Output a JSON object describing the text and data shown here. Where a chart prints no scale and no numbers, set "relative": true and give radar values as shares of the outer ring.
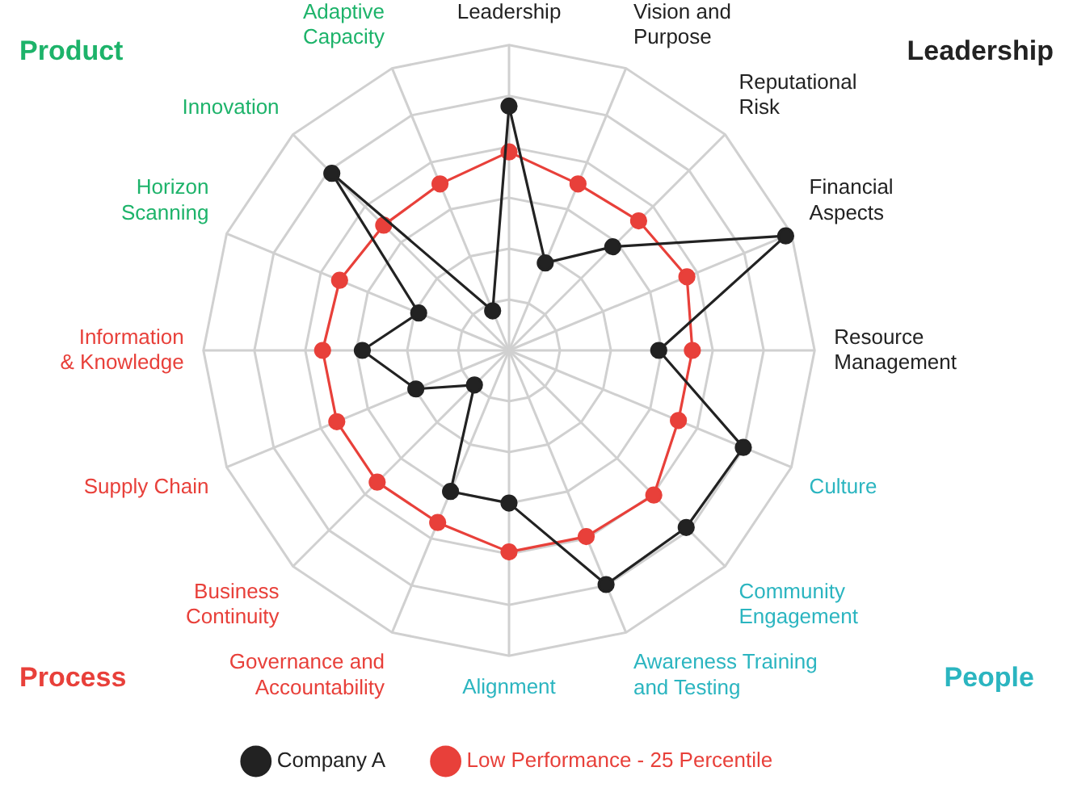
{
  "chart_data": {
    "type": "radar",
    "relative": true,
    "categories": [
      "Leadership",
      "Vision and Purpose",
      "Reputational Risk",
      "Financial Aspects",
      "Resource Management",
      "Culture",
      "Community Engagement",
      "Awareness Training and Testing",
      "Alignment",
      "Governance and Accountability",
      "Business Continuity",
      "Supply Chain",
      "Information & Knowledge",
      "Horizon Scanning",
      "Innovation",
      "Adaptive Capacity"
    ],
    "series": [
      {
        "name": "Company A",
        "color": "#222222",
        "values": [
          0.8,
          0.31,
          0.48,
          0.98,
          0.49,
          0.83,
          0.82,
          0.83,
          0.5,
          0.5,
          0.16,
          0.33,
          0.48,
          0.32,
          0.82,
          0.14
        ]
      },
      {
        "name": "Low Performance - 25 Percentile",
        "color": "#e8403a",
        "values": [
          0.65,
          0.59,
          0.6,
          0.63,
          0.6,
          0.6,
          0.67,
          0.66,
          0.66,
          0.61,
          0.61,
          0.61,
          0.61,
          0.6,
          0.58,
          0.59
        ]
      }
    ],
    "annotations": [
      "Product",
      "Leadership",
      "Process",
      "People"
    ],
    "grid": true,
    "legend": "bottom",
    "marker": "circle",
    "line_style": "solid"
  }
}
